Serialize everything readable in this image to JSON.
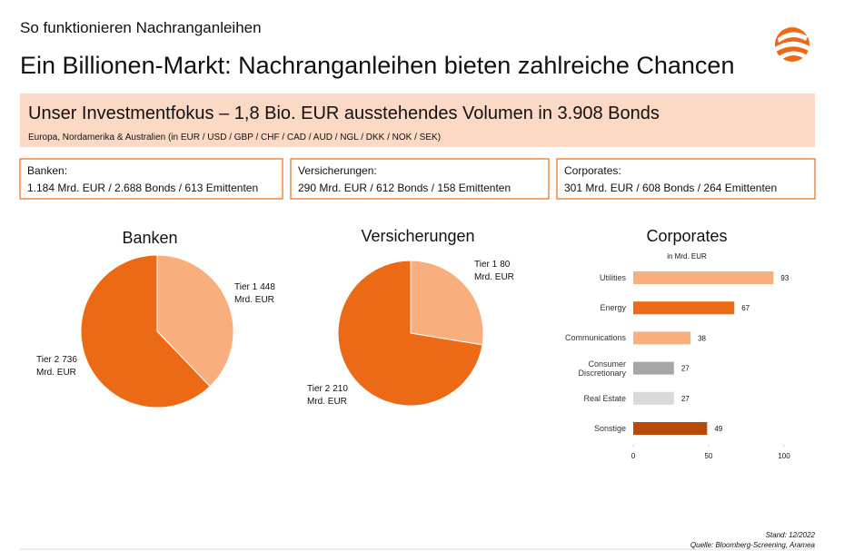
{
  "header": {
    "kicker": "So funktionieren Nachranganleihen",
    "title": "Ein Billionen-Markt: Nachranganleihen bieten zahlreiche Chancen"
  },
  "focus": {
    "title": "Unser Investmentfokus – 1,8 Bio. EUR ausstehendes Volumen in 3.908 Bonds",
    "subtitle": "Europa, Nordamerika & Australien (in EUR / USD / GBP / CHF / CAD / AUD / NGL / DKK / NOK / SEK)"
  },
  "boxes": [
    {
      "label": "Banken:",
      "text": "1.184 Mrd. EUR / 2.688 Bonds / 613 Emittenten"
    },
    {
      "label": "Versicherungen:",
      "text": "290 Mrd. EUR / 612 Bonds / 158 Emittenten"
    },
    {
      "label": "Corporates:",
      "text": "301 Mrd. EUR / 608 Bonds / 264 Emittenten"
    }
  ],
  "chart_data": [
    {
      "type": "pie",
      "title": "Banken",
      "categories": [
        "Tier 1",
        "Tier 2"
      ],
      "values": [
        448,
        736
      ],
      "unit": "Mrd. EUR",
      "colors": [
        "#f9ae7d",
        "#ec6a16"
      ]
    },
    {
      "type": "pie",
      "title": "Versicherungen",
      "categories": [
        "Tier 1",
        "Tier 2"
      ],
      "values": [
        80,
        210
      ],
      "unit": "Mrd. EUR",
      "colors": [
        "#f9ae7d",
        "#ec6a16"
      ]
    },
    {
      "type": "bar",
      "orientation": "horizontal",
      "title": "Corporates",
      "subtitle": "in Mrd. EUR",
      "categories": [
        "Utilities",
        "Energy",
        "Communications",
        "Consumer Discretionary",
        "Real Estate",
        "Sonstige"
      ],
      "values": [
        93,
        67,
        38,
        27,
        27,
        49
      ],
      "colors": [
        "#f9ae7d",
        "#ec6a16",
        "#f9ae7d",
        "#a6a6a6",
        "#d9d9d9",
        "#b84a0a"
      ],
      "xlim": [
        0,
        100
      ],
      "xticks": [
        0,
        50,
        100
      ]
    }
  ],
  "footer": {
    "date": "Stand: 12/2022",
    "source": "Quelle: Bloomberg-Screening, Aramea"
  }
}
